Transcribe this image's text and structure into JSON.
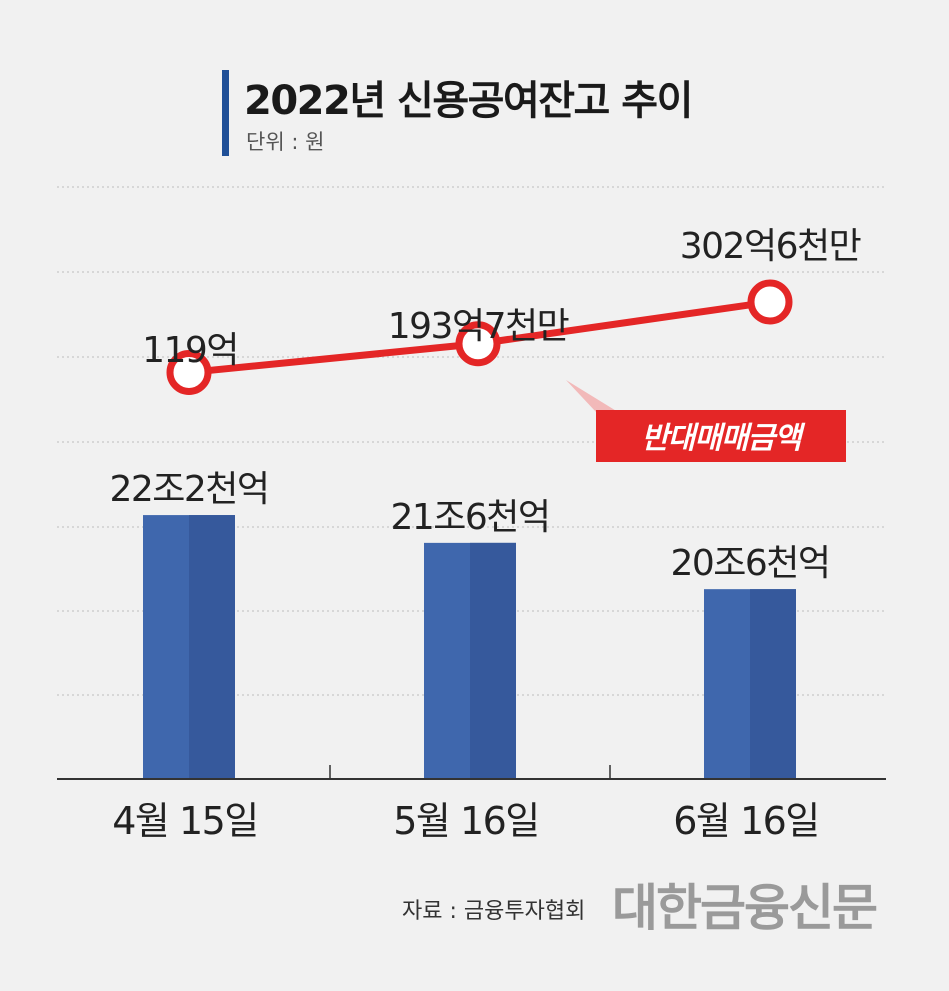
{
  "header": {
    "title": "2022년 신용공여잔고 추이",
    "unit": "단위 : 원"
  },
  "legend": {
    "line_label": "반대매매금액"
  },
  "colors": {
    "bar": "#3f67ad",
    "bar_shade": "#36599c",
    "line": "#e42626",
    "title_accent": "#1f4f97",
    "label_bg": "#e42626"
  },
  "chart_data": {
    "type": "bar",
    "categories": [
      "4월 15일",
      "5월 16일",
      "6월 16일"
    ],
    "series": [
      {
        "name": "",
        "type": "bar",
        "values": [
          22.2,
          21.6,
          20.6
        ],
        "unit": "조",
        "labels": [
          "22조2천억",
          "21조6천억",
          "20조6천억"
        ]
      },
      {
        "name": "반대매매금액",
        "type": "line",
        "values": [
          119,
          193.7,
          302.6
        ],
        "unit": "억",
        "labels": [
          "119억",
          "193억7천만",
          "302억6천만"
        ]
      }
    ],
    "grid": true
  },
  "footer": {
    "source": "자료 : 금융투자협회",
    "logo": "대한금융신문"
  }
}
